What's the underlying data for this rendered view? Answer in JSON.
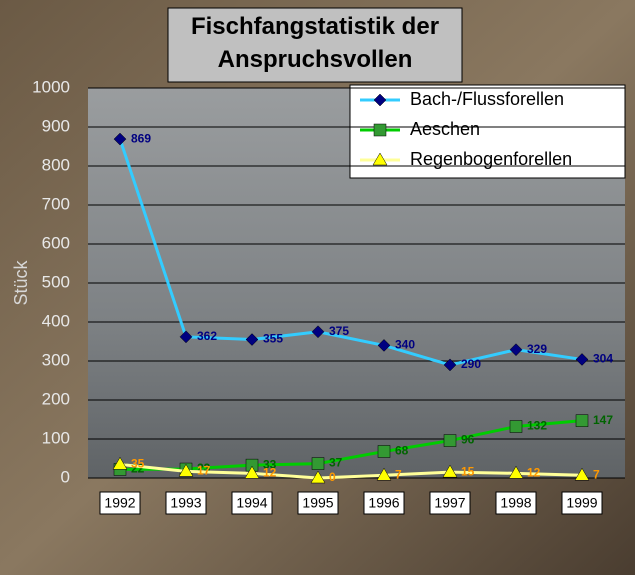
{
  "chart_data": {
    "type": "line",
    "title": "Fischfangstatistik der Anspruchsvollen",
    "y_label": "Stück",
    "categories": [
      "1992",
      "1993",
      "1994",
      "1995",
      "1996",
      "1997",
      "1998",
      "1999"
    ],
    "series": [
      {
        "name": "Bach-/Flussforellen",
        "color": "#33ccff",
        "marker": "diamond",
        "marker_color": "#000080",
        "label_color": "#000080",
        "values": [
          869,
          362,
          355,
          375,
          340,
          290,
          329,
          304
        ]
      },
      {
        "name": "Aeschen",
        "color": "#00cc00",
        "marker": "square",
        "marker_color": "#339933",
        "label_color": "#006400",
        "values": [
          22,
          23,
          33,
          37,
          68,
          96,
          132,
          147
        ]
      },
      {
        "name": "Regenbogenforellen",
        "color": "#ffff99",
        "marker": "triangle",
        "marker_color": "#ffff00",
        "label_color": "#ff9900",
        "values": [
          35,
          17,
          12,
          0,
          7,
          15,
          12,
          7
        ]
      }
    ],
    "ylim": [
      0,
      1000
    ],
    "yticks": [
      0,
      100,
      200,
      300,
      400,
      500,
      600,
      700,
      800,
      900,
      1000
    ],
    "grid": true
  }
}
